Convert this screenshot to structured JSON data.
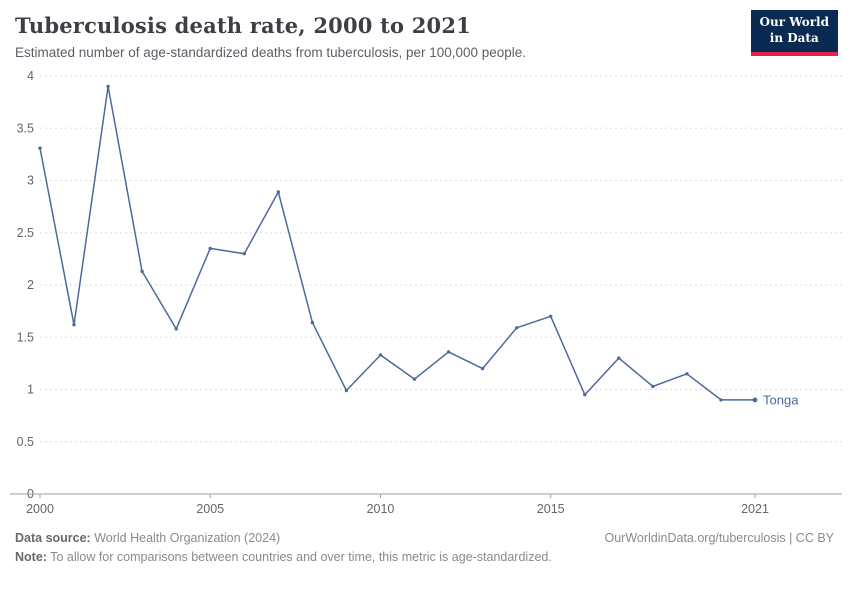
{
  "header": {
    "title": "Tuberculosis death rate, 2000 to 2021",
    "subtitle": "Estimated number of age-standardized deaths from tuberculosis, per 100,000 people.",
    "logo": {
      "line1": "Our World",
      "line2": "in Data",
      "bg_color": "#0b2a52",
      "accent_color": "#e2234e"
    }
  },
  "chart_data": {
    "type": "line",
    "x": [
      2000,
      2001,
      2002,
      2003,
      2004,
      2005,
      2006,
      2007,
      2008,
      2009,
      2010,
      2011,
      2012,
      2013,
      2014,
      2015,
      2016,
      2017,
      2018,
      2019,
      2020,
      2021
    ],
    "series": [
      {
        "name": "Tonga",
        "color": "#4c6a9c",
        "values": [
          3.31,
          1.62,
          3.9,
          2.13,
          1.58,
          2.35,
          2.3,
          2.89,
          1.64,
          0.99,
          1.33,
          1.1,
          1.36,
          1.2,
          1.59,
          1.7,
          0.95,
          1.3,
          1.03,
          1.15,
          0.9,
          0.9
        ]
      }
    ],
    "title": "Tuberculosis death rate, 2000 to 2021",
    "xlabel": "",
    "ylabel": "",
    "xlim": [
      2000,
      2021
    ],
    "ylim": [
      0,
      4
    ],
    "x_ticks": [
      2000,
      2005,
      2010,
      2015,
      2021
    ],
    "y_ticks": [
      0,
      0.5,
      1,
      1.5,
      2,
      2.5,
      3,
      3.5,
      4
    ],
    "grid": "horizontal-dashed",
    "legend_position": "end-of-line-label",
    "axis_color": "#a0a0a0",
    "grid_color": "#dddddd",
    "tick_label_color": "#666666"
  },
  "footer": {
    "source_label": "Data source:",
    "source_text": " World Health Organization (2024)",
    "note_label": "Note:",
    "note_text": " To allow for comparisons between countries and over time, this metric is age-standardized.",
    "link": "OurWorldinData.org/tuberculosis | CC BY"
  }
}
